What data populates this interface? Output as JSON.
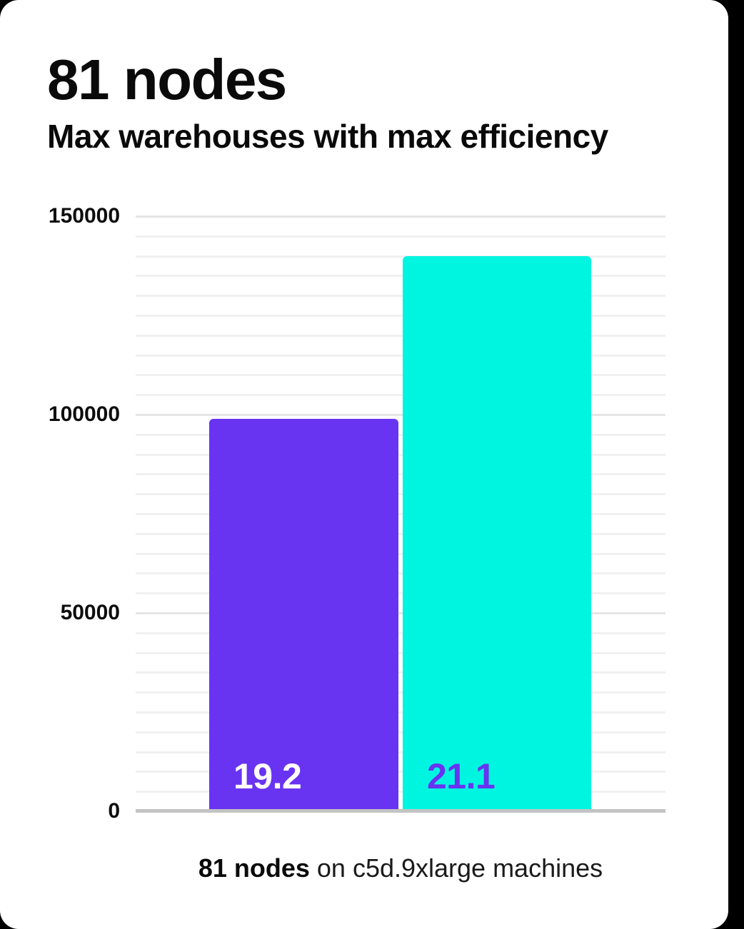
{
  "page": {
    "background_color": "#000000",
    "card_color": "#ffffff"
  },
  "header": {
    "title": "81 nodes",
    "subtitle": "Max warehouses with max efficiency"
  },
  "chart_data": {
    "type": "bar",
    "title": "81 nodes",
    "subtitle": "Max warehouses with max efficiency",
    "categories": [
      "19.2",
      "21.1"
    ],
    "values": [
      99000,
      140000
    ],
    "bar_colors": [
      "#6933f2",
      "#00f5e0"
    ],
    "bar_label_colors": [
      "#ffffff",
      "#6933f2"
    ],
    "xlabel": "",
    "ylabel": "",
    "ylim": [
      0,
      150000
    ],
    "yticks": [
      0,
      50000,
      100000,
      150000
    ],
    "ytick_labels": [
      "0",
      "50000",
      "100000",
      "150000"
    ],
    "minor_grid_step": 5000,
    "major_grid_step": 50000,
    "grid": "horizontal",
    "grid_colors": {
      "minor": "#f0f0f0",
      "major": "#e5e5e5",
      "baseline": "#c3c3c3"
    },
    "legend_position": "none",
    "caption": "81 nodes on c5d.9xlarge machines"
  },
  "caption": {
    "bold": "81 nodes",
    "rest": " on c5d.9xlarge machines"
  }
}
